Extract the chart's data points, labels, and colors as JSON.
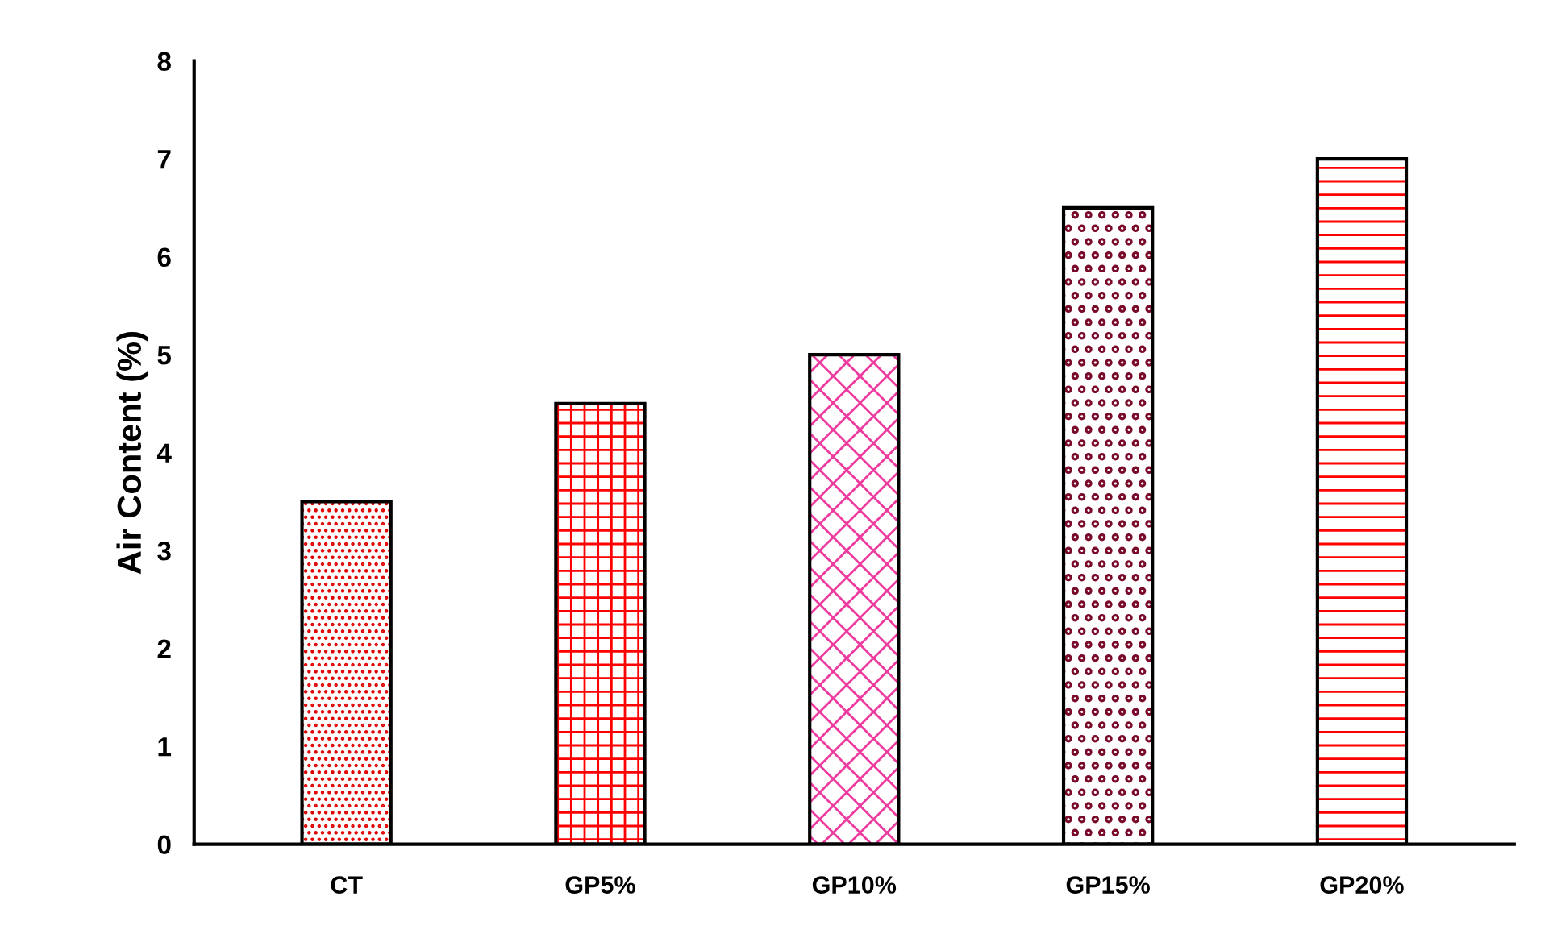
{
  "chart_data": {
    "type": "bar",
    "ylabel": "Air Content (%)",
    "categories": [
      "CT",
      "GP5%",
      "GP10%",
      "GP15%",
      "GP20%"
    ],
    "values": [
      3.5,
      4.5,
      5,
      6.5,
      7
    ],
    "colors": [
      "#e00000",
      "#ff0000",
      "#ee3ba0",
      "#7a0a2a",
      "#ff0000"
    ],
    "ylim": [
      0,
      8
    ],
    "yticks": [
      0,
      1,
      2,
      3,
      4,
      5,
      6,
      7,
      8
    ],
    "grid": false,
    "legend": false
  }
}
